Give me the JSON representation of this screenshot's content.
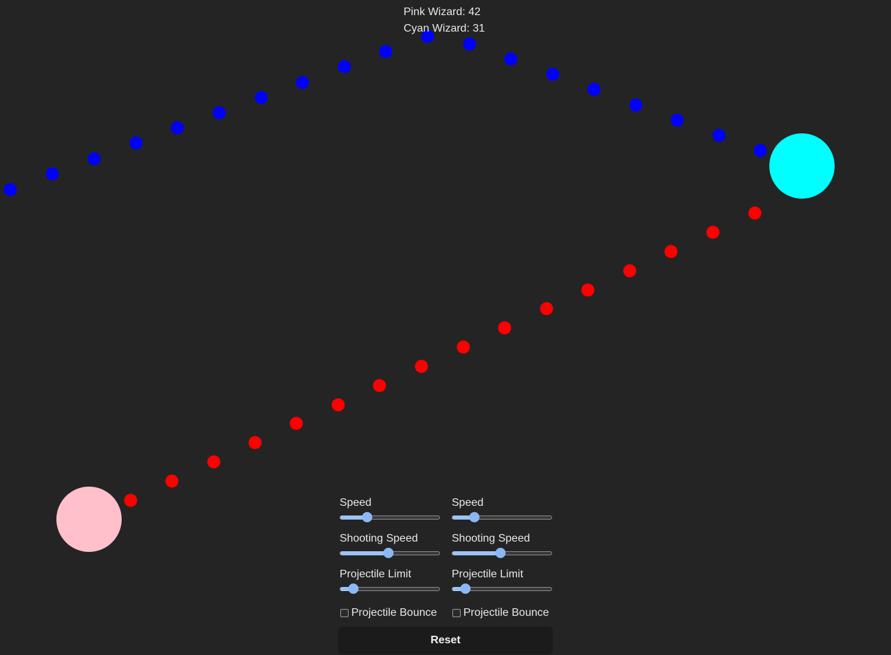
{
  "scoreboard": {
    "pink_label": "Pink Wizard: 42",
    "cyan_label": "Cyan Wizard: 31"
  },
  "colors": {
    "background": "#242424",
    "pink_wizard": "#ffc0cb",
    "cyan_wizard": "#00ffff",
    "pink_projectile": "#ff0000",
    "cyan_projectile": "#0000ff",
    "slider_accent": "#8bb8f2"
  },
  "controls": {
    "pink": {
      "speed_label": "Speed",
      "speed_value": 0.27,
      "shooting_speed_label": "Shooting Speed",
      "shooting_speed_value": 0.48,
      "projectile_limit_label": "Projectile Limit",
      "projectile_limit_value": 0.13,
      "bounce_label": "Projectile Bounce",
      "bounce_checked": false
    },
    "cyan": {
      "speed_label": "Speed",
      "speed_value": 0.22,
      "shooting_speed_label": "Shooting Speed",
      "shooting_speed_value": 0.48,
      "projectile_limit_label": "Projectile Limit",
      "projectile_limit_value": 0.13,
      "bounce_label": "Projectile Bounce",
      "bounce_checked": false
    },
    "reset_label": "Reset"
  }
}
